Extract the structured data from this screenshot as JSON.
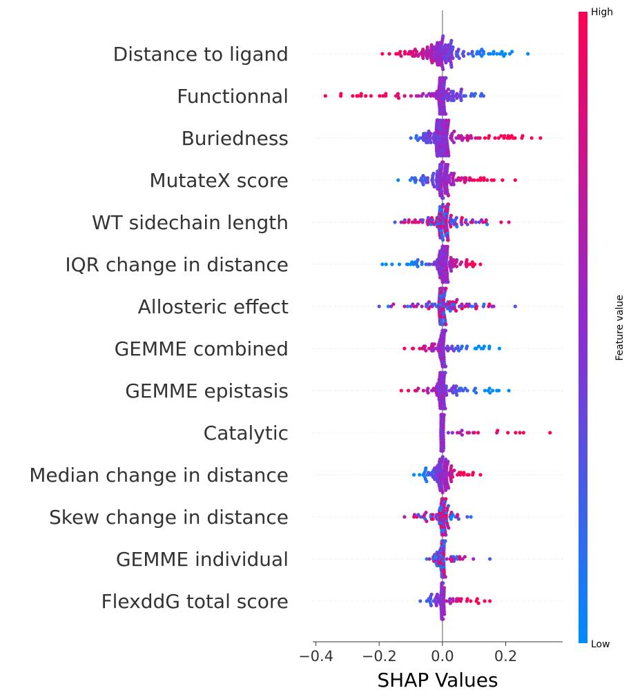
{
  "chart_data": {
    "type": "scatter",
    "subtype": "shap-beeswarm",
    "title": "",
    "xlabel": "SHAP Values",
    "ylabel": "",
    "xlim": [
      -0.41,
      0.38
    ],
    "xticks": [
      -0.4,
      -0.2,
      0.0,
      0.2
    ],
    "xtick_labels": [
      "−0.4",
      "−0.2",
      "0.0",
      "0.2"
    ],
    "grid": "dotted horizontal row lines",
    "zero_line": true,
    "colorbar": {
      "label": "Feature value",
      "high_label": "High",
      "low_label": "Low",
      "low_color": "#008bfb",
      "mid_color": "#8f2bd1",
      "high_color": "#ff0052",
      "position": "right"
    },
    "features": [
      {
        "name": "Distance to ligand",
        "min": -0.19,
        "max": 0.27,
        "core": 0.035,
        "count": 160,
        "trend": -1
      },
      {
        "name": "Functionnal",
        "min": -0.37,
        "max": 0.13,
        "core": 0.012,
        "count": 150,
        "trend": -1
      },
      {
        "name": "Buriedness",
        "min": -0.1,
        "max": 0.31,
        "core": 0.02,
        "count": 160,
        "trend": 1
      },
      {
        "name": "MutateX score",
        "min": -0.14,
        "max": 0.23,
        "core": 0.018,
        "count": 140,
        "trend": 1
      },
      {
        "name": "WT sidechain length",
        "min": -0.15,
        "max": 0.21,
        "core": 0.018,
        "count": 130,
        "trend": 0
      },
      {
        "name": "IQR change in distance",
        "min": -0.19,
        "max": 0.12,
        "core": 0.016,
        "count": 120,
        "trend": 1
      },
      {
        "name": "Allosteric effect",
        "min": -0.2,
        "max": 0.23,
        "core": 0.012,
        "count": 130,
        "trend": 0
      },
      {
        "name": "GEMME combined",
        "min": -0.12,
        "max": 0.18,
        "core": 0.01,
        "count": 110,
        "trend": -1
      },
      {
        "name": "GEMME epistasis",
        "min": -0.13,
        "max": 0.21,
        "core": 0.012,
        "count": 110,
        "trend": -1
      },
      {
        "name": "Catalytic",
        "min": -0.005,
        "max": 0.34,
        "core": 0.004,
        "count": 110,
        "trend": 1
      },
      {
        "name": "Median change in distance",
        "min": -0.09,
        "max": 0.12,
        "core": 0.014,
        "count": 110,
        "trend": 1
      },
      {
        "name": "Skew change in distance",
        "min": -0.12,
        "max": 0.09,
        "core": 0.01,
        "count": 100,
        "trend": 0
      },
      {
        "name": "GEMME individual",
        "min": -0.05,
        "max": 0.15,
        "core": 0.006,
        "count": 90,
        "trend": 0
      },
      {
        "name": "FlexddG total score",
        "min": -0.07,
        "max": 0.15,
        "core": 0.006,
        "count": 90,
        "trend": 1
      }
    ]
  }
}
